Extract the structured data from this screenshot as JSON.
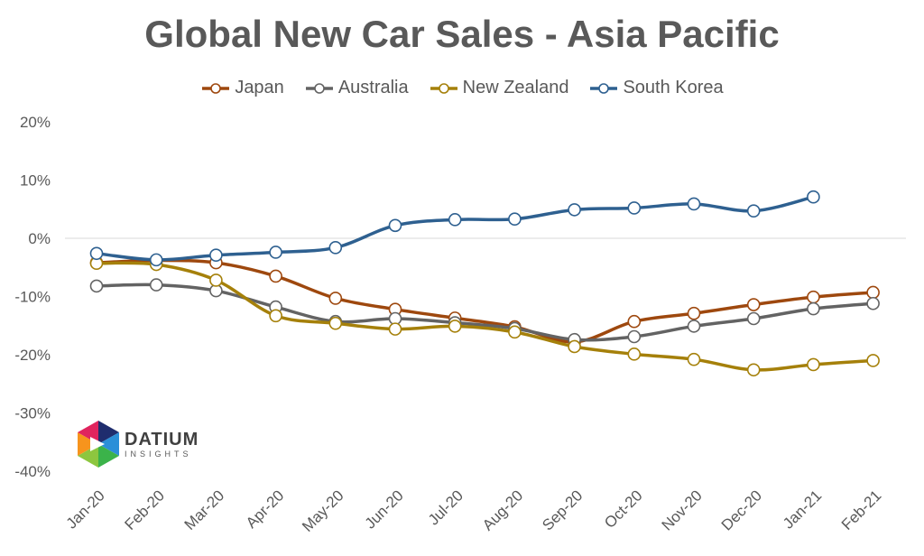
{
  "chart_data": {
    "type": "line",
    "title": "Global New Car Sales - Asia Pacific",
    "x": [
      "Jan-20",
      "Feb-20",
      "Mar-20",
      "Apr-20",
      "May-20",
      "Jun-20",
      "Jul-20",
      "Aug-20",
      "Sep-20",
      "Oct-20",
      "Nov-20",
      "Dec-20",
      "Jan-21",
      "Feb-21"
    ],
    "ylim": [
      -40,
      20
    ],
    "yticks": [
      20,
      10,
      0,
      -10,
      -20,
      -30,
      -40
    ],
    "ytick_labels": [
      "20%",
      "10%",
      "0%",
      "-10%",
      "-20%",
      "-30%",
      "-40%"
    ],
    "legend_position": "top",
    "grid": false,
    "series": [
      {
        "name": "Japan",
        "color": "#9E480E",
        "values": [
          -4.2,
          -3.8,
          -4.2,
          -6.5,
          -10.3,
          -12.2,
          -13.7,
          -15.2,
          -17.8,
          -14.3,
          -12.9,
          -11.4,
          -10.1,
          -9.3
        ]
      },
      {
        "name": "Australia",
        "color": "#636363",
        "values": [
          -8.2,
          -8.0,
          -9.0,
          -11.8,
          -14.3,
          -13.8,
          -14.5,
          -15.5,
          -17.4,
          -16.9,
          -15.1,
          -13.8,
          -12.1,
          -11.2
        ]
      },
      {
        "name": "New Zealand",
        "color": "#A5800A",
        "values": [
          -4.3,
          -4.5,
          -7.2,
          -13.3,
          -14.6,
          -15.6,
          -15.1,
          -16.1,
          -18.6,
          -19.9,
          -20.8,
          -22.6,
          -21.7,
          -21.0
        ]
      },
      {
        "name": "South Korea",
        "color": "#2E6090",
        "values": [
          -2.6,
          -3.7,
          -2.9,
          -2.4,
          -1.6,
          2.2,
          3.2,
          3.3,
          4.9,
          5.2,
          5.9,
          4.7,
          7.1,
          null
        ]
      }
    ]
  },
  "logo": {
    "main": "DATIUM",
    "sub": "INSIGHTS"
  }
}
